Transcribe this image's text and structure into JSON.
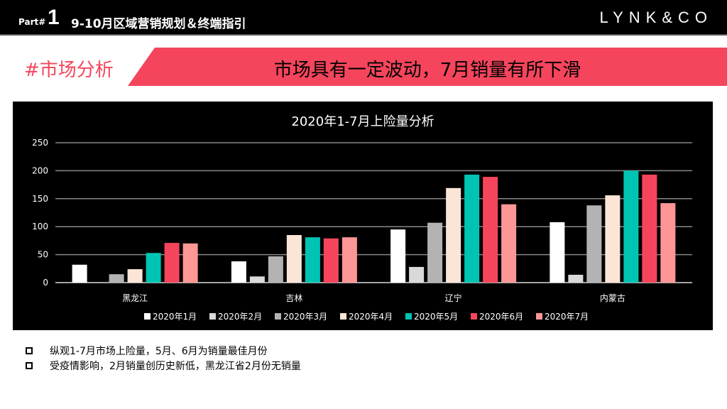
{
  "header": {
    "part_label": "Part#",
    "part_number": "1",
    "title": "9-10月区域营销规划＆终端指引",
    "logo": "LYNK&CO"
  },
  "section": {
    "tag": "#市场分析",
    "headline": "市场具有一定波动，7月销量有所下滑"
  },
  "chart_data": {
    "type": "bar",
    "title": "2020年1-7月上险量分析",
    "categories": [
      "黑龙江",
      "吉林",
      "辽宁",
      "内蒙古"
    ],
    "ylim": [
      0,
      250
    ],
    "yticks": [
      0,
      50,
      100,
      150,
      200,
      250
    ],
    "grid": true,
    "legend": "bottom",
    "series": [
      {
        "name": "2020年1月",
        "color": "#ffffff",
        "values": [
          32,
          38,
          95,
          108
        ]
      },
      {
        "name": "2020年2月",
        "color": "#d9d9d9",
        "values": [
          0,
          11,
          28,
          14
        ]
      },
      {
        "name": "2020年3月",
        "color": "#b3b3b3",
        "values": [
          15,
          47,
          107,
          138
        ]
      },
      {
        "name": "2020年4月",
        "color": "#fbe5d6",
        "values": [
          24,
          85,
          169,
          156
        ]
      },
      {
        "name": "2020年5月",
        "color": "#00c4b3",
        "values": [
          53,
          81,
          193,
          200
        ]
      },
      {
        "name": "2020年6月",
        "color": "#f5455c",
        "values": [
          71,
          79,
          189,
          193
        ]
      },
      {
        "name": "2020年7月",
        "color": "#ff9696",
        "values": [
          70,
          81,
          140,
          142
        ]
      }
    ]
  },
  "notes": [
    "纵观1-7月市场上险量，5月、6月为销量最佳月份",
    "受疫情影响，2月销量创历史新低，黑龙江省2月份无销量"
  ]
}
